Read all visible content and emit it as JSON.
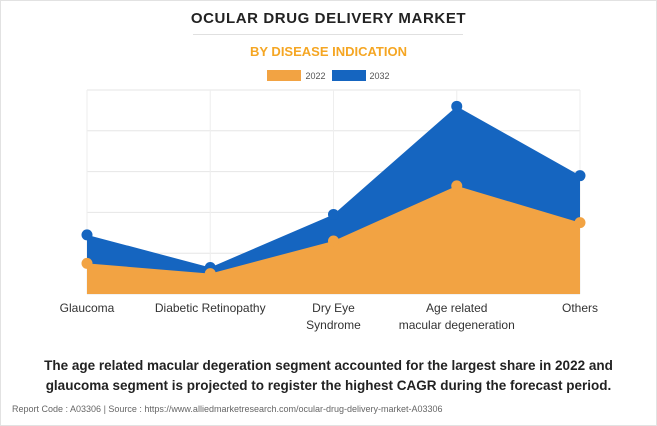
{
  "header": {
    "title": "OCULAR DRUG DELIVERY MARKET",
    "subtitle": "BY DISEASE INDICATION"
  },
  "colors": {
    "series_2022": "#f2a343",
    "series_2032": "#1565c0",
    "title_accent": "#f5a623"
  },
  "chart_data": {
    "type": "area",
    "categories": [
      [
        "Glaucoma"
      ],
      [
        "Diabetic Retinopathy"
      ],
      [
        "Dry Eye",
        "Syndrome"
      ],
      [
        "Age related",
        "macular degeneration"
      ],
      [
        "Others"
      ]
    ],
    "series": [
      {
        "name": "2032",
        "values": [
          29,
          13,
          39,
          92,
          58
        ]
      },
      {
        "name": "2022",
        "values": [
          15,
          10,
          26,
          53,
          35
        ]
      }
    ],
    "ylim": [
      0,
      100
    ],
    "legend_position": "top-center",
    "grid": true,
    "legend": [
      "2022",
      "2032"
    ]
  },
  "summary": "The age related macular degeration segment accounted for the largest share in 2022 and glaucoma segment is projected to register the highest CAGR during the forecast period.",
  "footer": "Report Code : A03306  |  Source : https://www.alliedmarketresearch.com/ocular-drug-delivery-market-A03306"
}
